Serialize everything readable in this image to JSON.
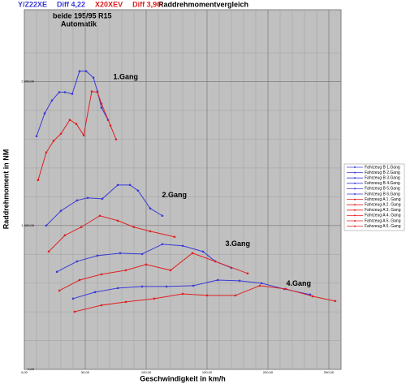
{
  "chart_data": {
    "type": "line",
    "title": "Raddrehmomentvergleich",
    "header": [
      {
        "text": "Y/Z22XE",
        "color": "#3a3ad8"
      },
      {
        "text": "Diff 4,22",
        "color": "#3a3ad8"
      },
      {
        "text": "X20XEV",
        "color": "#e02020"
      },
      {
        "text": "Diff 3,90",
        "color": "#e02020"
      }
    ],
    "subtitle": [
      "beide 195/95 R15",
      "Automatik"
    ],
    "xlabel": "Geschwindigkeit in km/h",
    "ylabel": "Raddrehmoment in NM",
    "xlim": [
      0,
      260
    ],
    "xticks": [
      {
        "value": 0,
        "label": "0,00"
      },
      {
        "value": 50,
        "label": "50,00"
      },
      {
        "value": 100,
        "label": "100,00"
      },
      {
        "value": 150,
        "label": "150,00"
      },
      {
        "value": 200,
        "label": "200,00"
      },
      {
        "value": 250,
        "label": "250,00"
      }
    ],
    "ylim": [
      0,
      2500
    ],
    "yticks": [
      {
        "value": 0,
        "label": "0,00"
      },
      {
        "value": 1000,
        "label": "1.000,00"
      },
      {
        "value": 2000,
        "label": "2.000,00"
      }
    ],
    "grid": true,
    "legend": "right",
    "annotations": [
      {
        "text": "1.Gang",
        "x": 73,
        "y": 2030
      },
      {
        "text": "2.Gang",
        "x": 113,
        "y": 1210
      },
      {
        "text": "3.Gang",
        "x": 165,
        "y": 870
      },
      {
        "text": "4.Gang",
        "x": 215,
        "y": 595
      }
    ],
    "series": [
      {
        "name": "Fahrzeug B 1.Gang",
        "color": "#3a3ad8",
        "x": [
          10,
          16.7,
          22.7,
          28.7,
          33.3,
          39.3,
          45.3,
          50.7,
          56.7,
          60,
          63.3,
          68.7
        ],
        "values": [
          1621,
          1780,
          1870,
          1927,
          1927,
          1915,
          2073,
          2073,
          2028,
          1932,
          1819,
          1734
        ]
      },
      {
        "name": "Fahrzeug B 2.Gang",
        "color": "#3a3ad8",
        "x": [
          18,
          30,
          43.3,
          52,
          64,
          76.7,
          86.7,
          93.3,
          103.3,
          113.3
        ],
        "values": [
          1000,
          1102,
          1175,
          1192,
          1186,
          1282,
          1282,
          1243,
          1119,
          1068
        ]
      },
      {
        "name": "Fahrzeug B 3.Gang",
        "color": "#3a3ad8",
        "x": [
          26.7,
          43.3,
          60,
          78.7,
          96.7,
          113.3,
          130,
          146.7,
          156.7,
          170
        ],
        "values": [
          678,
          751,
          791,
          808,
          802,
          870,
          859,
          819,
          751,
          706
        ]
      },
      {
        "name": "Fahrzeug B 4.Gang",
        "color": "#3a3ad8",
        "x": [
          40,
          58,
          76.7,
          96.7,
          116.7,
          138.7,
          158.7,
          176.7,
          194.7,
          213.3,
          234.7
        ],
        "values": [
          492,
          537,
          565,
          576,
          576,
          582,
          621,
          616,
          599,
          559,
          520
        ]
      },
      {
        "name": "Fahrzeug B 5.Gang",
        "color": "#3a3ad8",
        "x": [],
        "values": []
      },
      {
        "name": "Fahrzeug B 6.Gang",
        "color": "#3a3ad8",
        "x": [],
        "values": []
      },
      {
        "name": "Fahrzeug A 1. Gang",
        "color": "#e02020",
        "x": [
          11.3,
          18,
          24,
          30,
          37.3,
          42.7,
          48.7,
          55.3,
          60,
          63.3,
          70.7,
          75.3
        ],
        "values": [
          1316,
          1508,
          1588,
          1638,
          1734,
          1706,
          1627,
          1932,
          1927,
          1847,
          1695,
          1599
        ]
      },
      {
        "name": "Fahrzeug A 2. Gang",
        "color": "#e02020",
        "x": [
          20,
          33.3,
          46.7,
          62,
          76.7,
          90,
          103.3,
          123.3
        ],
        "values": [
          819,
          932,
          989,
          1068,
          1034,
          989,
          960,
          921
        ]
      },
      {
        "name": "Fahrzeug A 3. Gang",
        "color": "#e02020",
        "x": [
          28.7,
          45.3,
          63.3,
          83.3,
          100,
          120,
          138,
          156.7,
          183.3
        ],
        "values": [
          548,
          621,
          661,
          689,
          729,
          689,
          808,
          751,
          667
        ]
      },
      {
        "name": "Fahrzeug A 4. Gang",
        "color": "#e02020",
        "x": [
          41.3,
          63.3,
          83.3,
          106.7,
          130,
          150,
          173.3,
          193.3,
          214.7,
          236.7,
          255.3
        ],
        "values": [
          401,
          446,
          469,
          492,
          525,
          514,
          514,
          582,
          559,
          508,
          475
        ]
      },
      {
        "name": "Fahrzeug A 5. Gang",
        "color": "#e02020",
        "x": [],
        "values": []
      },
      {
        "name": "Fahrzeug A 6. Gang",
        "color": "#e02020",
        "x": [],
        "values": []
      }
    ]
  }
}
